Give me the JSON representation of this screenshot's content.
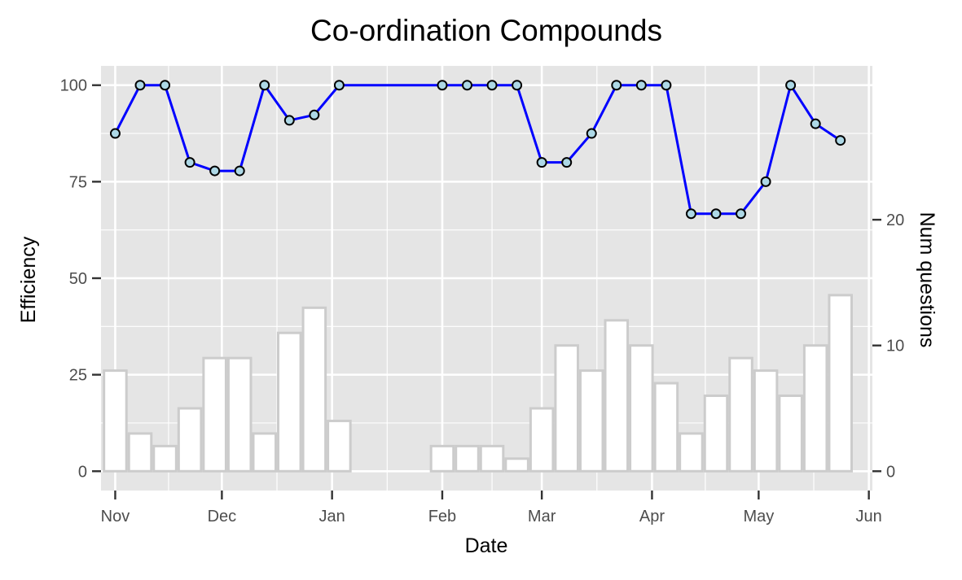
{
  "chart_data": {
    "type": "bar+line",
    "title": "Co-ordination Compounds",
    "xlabel": "Date",
    "ylabel": "Efficiency",
    "y2label": "Num questions",
    "x_ticks": [
      "Nov",
      "Dec",
      "Jan",
      "Feb",
      "Mar",
      "Apr",
      "May",
      "Jun"
    ],
    "x_tick_dates": [
      "2017-11-01",
      "2017-12-01",
      "2018-01-01",
      "2018-02-01",
      "2018-03-01",
      "2018-04-01",
      "2018-05-01",
      "2018-06-01"
    ],
    "xlim": [
      "2017-10-28",
      "2018-06-02"
    ],
    "ylim": [
      -5,
      105
    ],
    "y_ticks": [
      0,
      25,
      50,
      75,
      100
    ],
    "y2lim": [
      0,
      30.7
    ],
    "y2_ticks": [
      0,
      10,
      20
    ],
    "grid": true,
    "colors": {
      "panel_background": "#e5e5e5",
      "grid": "#ffffff",
      "line": "#0000ff",
      "point_fill": "#add8e6",
      "point_border": "#000000",
      "bar_fill": "#ffffff",
      "bar_border": "#cccccc"
    },
    "series": [
      {
        "type": "bar",
        "axis": "right",
        "points": [
          {
            "date": "2017-11-01",
            "value": 8
          },
          {
            "date": "2017-11-08",
            "value": 3
          },
          {
            "date": "2017-11-15",
            "value": 2
          },
          {
            "date": "2017-11-22",
            "value": 5
          },
          {
            "date": "2017-11-29",
            "value": 9
          },
          {
            "date": "2017-12-06",
            "value": 9
          },
          {
            "date": "2017-12-13",
            "value": 3
          },
          {
            "date": "2017-12-20",
            "value": 11
          },
          {
            "date": "2017-12-27",
            "value": 13
          },
          {
            "date": "2018-01-03",
            "value": 4
          },
          {
            "date": "2018-02-01",
            "value": 2
          },
          {
            "date": "2018-02-08",
            "value": 2
          },
          {
            "date": "2018-02-15",
            "value": 2
          },
          {
            "date": "2018-02-22",
            "value": 1
          },
          {
            "date": "2018-03-01",
            "value": 5
          },
          {
            "date": "2018-03-08",
            "value": 10
          },
          {
            "date": "2018-03-15",
            "value": 8
          },
          {
            "date": "2018-03-22",
            "value": 12
          },
          {
            "date": "2018-03-29",
            "value": 10
          },
          {
            "date": "2018-04-05",
            "value": 7
          },
          {
            "date": "2018-04-12",
            "value": 3
          },
          {
            "date": "2018-04-19",
            "value": 6
          },
          {
            "date": "2018-04-26",
            "value": 9
          },
          {
            "date": "2018-05-03",
            "value": 8
          },
          {
            "date": "2018-05-10",
            "value": 6
          },
          {
            "date": "2018-05-17",
            "value": 10
          },
          {
            "date": "2018-05-24",
            "value": 14
          }
        ]
      },
      {
        "type": "line",
        "axis": "left",
        "points": [
          {
            "date": "2017-11-01",
            "value": 87.5
          },
          {
            "date": "2017-11-08",
            "value": 100
          },
          {
            "date": "2017-11-15",
            "value": 100
          },
          {
            "date": "2017-11-22",
            "value": 80
          },
          {
            "date": "2017-11-29",
            "value": 77.8
          },
          {
            "date": "2017-12-06",
            "value": 77.8
          },
          {
            "date": "2017-12-13",
            "value": 100
          },
          {
            "date": "2017-12-20",
            "value": 90.9
          },
          {
            "date": "2017-12-27",
            "value": 92.3
          },
          {
            "date": "2018-01-03",
            "value": 100
          },
          {
            "date": "2018-02-01",
            "value": 100
          },
          {
            "date": "2018-02-08",
            "value": 100
          },
          {
            "date": "2018-02-15",
            "value": 100
          },
          {
            "date": "2018-02-22",
            "value": 100
          },
          {
            "date": "2018-03-01",
            "value": 80
          },
          {
            "date": "2018-03-08",
            "value": 80
          },
          {
            "date": "2018-03-15",
            "value": 87.5
          },
          {
            "date": "2018-03-22",
            "value": 100
          },
          {
            "date": "2018-03-29",
            "value": 100
          },
          {
            "date": "2018-04-05",
            "value": 100
          },
          {
            "date": "2018-04-12",
            "value": 66.7
          },
          {
            "date": "2018-04-19",
            "value": 66.7
          },
          {
            "date": "2018-04-26",
            "value": 66.7
          },
          {
            "date": "2018-05-03",
            "value": 75
          },
          {
            "date": "2018-05-10",
            "value": 100
          },
          {
            "date": "2018-05-17",
            "value": 90
          },
          {
            "date": "2018-05-24",
            "value": 85.7
          }
        ]
      }
    ]
  }
}
